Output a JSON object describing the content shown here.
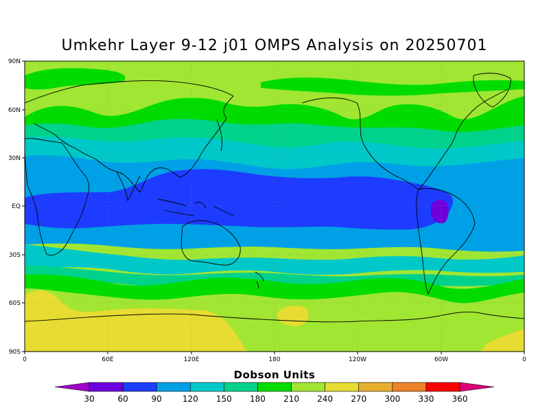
{
  "title": "Umkehr Layer 9-12 j01 OMPS Analysis on 20250701",
  "lat_labels": [
    "90N",
    "60N",
    "30N",
    "EQ",
    "30S",
    "60S",
    "90S"
  ],
  "lon_labels": [
    "0",
    "60E",
    "120E",
    "180",
    "120W",
    "60W",
    "0"
  ],
  "colorbar": {
    "title": "Dobson Units",
    "levels": [
      "30",
      "60",
      "90",
      "120",
      "150",
      "180",
      "210",
      "240",
      "270",
      "300",
      "330",
      "360"
    ],
    "colors": [
      "#a000c8",
      "#6e00dc",
      "#1e3cff",
      "#00a0e6",
      "#00c8c8",
      "#00d28c",
      "#00dc00",
      "#a0e632",
      "#e6dc32",
      "#e6af2d",
      "#f08228",
      "#fa0000",
      "#dc0078"
    ]
  },
  "fields": {
    "background_color": "#a0e632",
    "bands_color_210": "#00dc00",
    "bands_color_180": "#00d28c",
    "bands_color_150": "#00c8c8",
    "bands_color_120": "#00a0e6",
    "bands_color_90": "#1e3cff",
    "bands_color_60": "#6e00dc",
    "bands_color_270": "#e6dc32"
  }
}
